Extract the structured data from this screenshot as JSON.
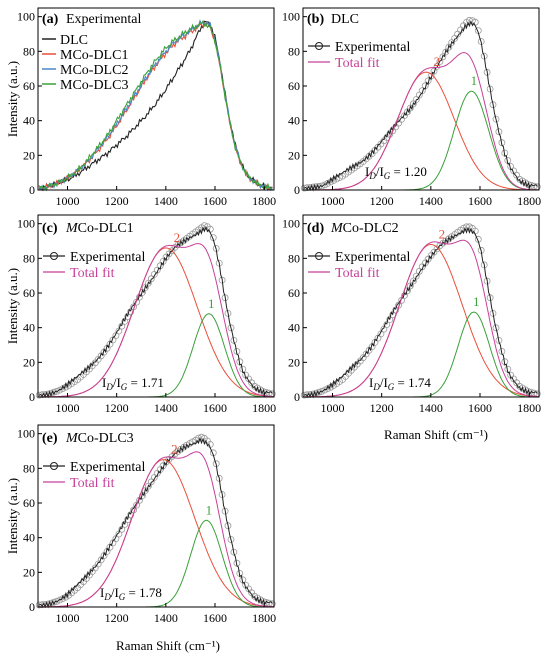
{
  "figure": {
    "ylabel": "Intensity (a.u.)",
    "xlabel": "Raman Shift (cm⁻¹)"
  },
  "colors": {
    "DLC": "#222222",
    "MCo-DLC1": "#e8503a",
    "MCo-DLC2": "#4a88c8",
    "MCo-DLC3": "#3aa03a",
    "experimental": "#222222",
    "total_fit": "#c8409a",
    "peak_D": "#e8503a",
    "peak_G": "#3aa03a",
    "marker": "#9a9a9a"
  },
  "chart_data": [
    {
      "panel": "a",
      "type": "line",
      "tag": "(a)",
      "title": "Experimental",
      "xlabel": "",
      "ylabel": "Intensity (a.u.)",
      "xlim": [
        880,
        1840
      ],
      "ylim": [
        0,
        105
      ],
      "xticks": [
        1000,
        1200,
        1400,
        1600,
        1800
      ],
      "yticks": [
        0,
        20,
        40,
        60,
        80,
        100
      ],
      "legend": "top-left",
      "series": [
        {
          "name": "DLC",
          "color_key": "DLC",
          "x": [
            890,
            920,
            960,
            1000,
            1040,
            1080,
            1120,
            1160,
            1200,
            1240,
            1280,
            1320,
            1360,
            1400,
            1440,
            1480,
            1500,
            1520,
            1540,
            1560,
            1580,
            1600,
            1620,
            1640,
            1660,
            1680,
            1700,
            1720,
            1740,
            1760,
            1780,
            1800,
            1830
          ],
          "y": [
            1,
            2,
            4,
            6,
            9,
            13,
            17,
            21,
            26,
            31,
            37,
            43,
            50,
            58,
            67,
            76,
            81,
            87,
            93,
            97,
            96,
            88,
            74,
            56,
            40,
            27,
            18,
            11,
            7,
            5,
            3,
            2,
            1
          ]
        },
        {
          "name": "MCo-DLC1",
          "color_key": "MCo-DLC1",
          "x": [
            890,
            920,
            960,
            1000,
            1040,
            1080,
            1120,
            1160,
            1200,
            1240,
            1280,
            1320,
            1360,
            1400,
            1440,
            1480,
            1500,
            1520,
            1540,
            1560,
            1580,
            1600,
            1620,
            1640,
            1660,
            1680,
            1700,
            1720,
            1740,
            1760,
            1780,
            1800,
            1830
          ],
          "y": [
            1,
            2,
            4,
            7,
            11,
            16,
            22,
            29,
            37,
            46,
            55,
            64,
            72,
            79,
            85,
            89,
            91,
            93,
            95,
            96,
            94,
            86,
            72,
            55,
            39,
            26,
            17,
            11,
            7,
            5,
            3,
            2,
            1
          ]
        },
        {
          "name": "MCo-DLC2",
          "color_key": "MCo-DLC2",
          "x": [
            890,
            920,
            960,
            1000,
            1040,
            1080,
            1120,
            1160,
            1200,
            1240,
            1280,
            1320,
            1360,
            1400,
            1440,
            1480,
            1500,
            1520,
            1540,
            1560,
            1580,
            1600,
            1620,
            1640,
            1660,
            1680,
            1700,
            1720,
            1740,
            1760,
            1780,
            1800,
            1830
          ],
          "y": [
            1,
            2,
            4,
            7,
            11,
            16,
            23,
            30,
            38,
            47,
            56,
            65,
            73,
            80,
            86,
            90,
            92,
            94,
            96,
            97,
            95,
            87,
            73,
            56,
            40,
            27,
            18,
            11,
            7,
            5,
            3,
            2,
            1
          ]
        },
        {
          "name": "MCo-DLC3",
          "color_key": "MCo-DLC3",
          "x": [
            890,
            920,
            960,
            1000,
            1040,
            1080,
            1120,
            1160,
            1200,
            1240,
            1280,
            1320,
            1360,
            1400,
            1440,
            1480,
            1500,
            1520,
            1540,
            1560,
            1580,
            1600,
            1620,
            1640,
            1660,
            1680,
            1700,
            1720,
            1740,
            1760,
            1780,
            1800,
            1830
          ],
          "y": [
            1,
            2,
            4,
            7,
            11,
            17,
            24,
            31,
            40,
            49,
            58,
            67,
            75,
            82,
            87,
            91,
            93,
            94,
            96,
            96,
            94,
            86,
            72,
            55,
            39,
            26,
            17,
            11,
            7,
            5,
            3,
            2,
            1
          ]
        }
      ]
    },
    {
      "panel": "b",
      "type": "line",
      "tag": "(b)",
      "title": "DLC",
      "xlabel": "",
      "ylabel": "",
      "xlim": [
        880,
        1840
      ],
      "ylim": [
        0,
        105
      ],
      "xticks": [
        1000,
        1200,
        1400,
        1600,
        1800
      ],
      "yticks": [
        0,
        20,
        40,
        60,
        80,
        100
      ],
      "legend": [
        "Experimental",
        "Total fit"
      ],
      "ratio_text": "= 1.20",
      "peaks": [
        {
          "label": "2",
          "center": 1380,
          "height": 68,
          "width": 270
        },
        {
          "label": "1",
          "center": 1565,
          "height": 57,
          "width": 165
        }
      ],
      "experimental": {
        "x": [
          880,
          920,
          960,
          1000,
          1040,
          1080,
          1120,
          1160,
          1200,
          1240,
          1280,
          1320,
          1360,
          1400,
          1440,
          1480,
          1520,
          1540,
          1560,
          1580,
          1600,
          1620,
          1640,
          1660,
          1680,
          1700,
          1720,
          1760,
          1800,
          1840
        ],
        "y": [
          1,
          2,
          3,
          6,
          9,
          13,
          17,
          22,
          28,
          34,
          41,
          48,
          56,
          65,
          74,
          83,
          91,
          95,
          97,
          96,
          88,
          74,
          58,
          43,
          31,
          21,
          14,
          6,
          3,
          2
        ]
      }
    },
    {
      "panel": "c",
      "type": "line",
      "tag": "(c)",
      "title": "MCo-DLC1",
      "xlabel": "",
      "ylabel": "Intensity (a.u.)",
      "xlim": [
        880,
        1840
      ],
      "ylim": [
        0,
        105
      ],
      "xticks": [
        1000,
        1200,
        1400,
        1600,
        1800
      ],
      "yticks": [
        0,
        20,
        40,
        60,
        80,
        100
      ],
      "legend": [
        "Experimental",
        "Total fit"
      ],
      "ratio_text": "= 1.71",
      "peaks": [
        {
          "label": "2",
          "center": 1400,
          "height": 86,
          "width": 300
        },
        {
          "label": "1",
          "center": 1575,
          "height": 48,
          "width": 150
        }
      ],
      "experimental": {
        "x": [
          880,
          920,
          960,
          1000,
          1040,
          1080,
          1120,
          1160,
          1200,
          1240,
          1280,
          1320,
          1360,
          1400,
          1440,
          1480,
          1520,
          1540,
          1560,
          1580,
          1600,
          1620,
          1640,
          1660,
          1680,
          1700,
          1720,
          1760,
          1800,
          1840
        ],
        "y": [
          1,
          2,
          4,
          7,
          11,
          16,
          22,
          29,
          37,
          46,
          55,
          64,
          72,
          80,
          86,
          90,
          94,
          96,
          98,
          96,
          88,
          74,
          57,
          42,
          30,
          20,
          13,
          6,
          3,
          2
        ]
      }
    },
    {
      "panel": "d",
      "type": "line",
      "tag": "(d)",
      "title": "MCo-DLC2",
      "xlabel": "Raman Shift (cm⁻¹)",
      "ylabel": "",
      "xlim": [
        880,
        1840
      ],
      "ylim": [
        0,
        105
      ],
      "xticks": [
        1000,
        1200,
        1400,
        1600,
        1800
      ],
      "yticks": [
        0,
        20,
        40,
        60,
        80,
        100
      ],
      "legend": [
        "Experimental",
        "Total fit"
      ],
      "ratio_text": "= 1.74",
      "peaks": [
        {
          "label": "2",
          "center": 1400,
          "height": 88,
          "width": 300
        },
        {
          "label": "1",
          "center": 1575,
          "height": 49,
          "width": 150
        }
      ],
      "experimental": {
        "x": [
          880,
          920,
          960,
          1000,
          1040,
          1080,
          1120,
          1160,
          1200,
          1240,
          1280,
          1320,
          1360,
          1400,
          1440,
          1480,
          1520,
          1540,
          1560,
          1580,
          1600,
          1620,
          1640,
          1660,
          1680,
          1700,
          1720,
          1760,
          1800,
          1840
        ],
        "y": [
          1,
          2,
          4,
          7,
          11,
          17,
          23,
          30,
          38,
          47,
          56,
          65,
          74,
          81,
          87,
          91,
          95,
          97,
          97,
          95,
          87,
          73,
          57,
          42,
          30,
          20,
          13,
          6,
          3,
          2
        ]
      }
    },
    {
      "panel": "e",
      "type": "line",
      "tag": "(e)",
      "title": "MCo-DLC3",
      "xlabel": "Raman Shift (cm⁻¹)",
      "ylabel": "Intensity (a.u.)",
      "xlim": [
        880,
        1840
      ],
      "ylim": [
        0,
        105
      ],
      "xticks": [
        1000,
        1200,
        1400,
        1600,
        1800
      ],
      "yticks": [
        0,
        20,
        40,
        60,
        80,
        100
      ],
      "legend": [
        "Experimental",
        "Total fit"
      ],
      "ratio_text": "= 1.78",
      "peaks": [
        {
          "label": "2",
          "center": 1390,
          "height": 85,
          "width": 300
        },
        {
          "label": "1",
          "center": 1565,
          "height": 50,
          "width": 150
        }
      ],
      "experimental": {
        "x": [
          880,
          920,
          960,
          1000,
          1040,
          1080,
          1120,
          1160,
          1200,
          1240,
          1280,
          1320,
          1360,
          1400,
          1440,
          1480,
          1520,
          1540,
          1560,
          1580,
          1600,
          1620,
          1640,
          1660,
          1680,
          1700,
          1720,
          1760,
          1800,
          1840
        ],
        "y": [
          1,
          2,
          4,
          7,
          12,
          18,
          25,
          33,
          41,
          50,
          59,
          68,
          76,
          83,
          88,
          92,
          95,
          97,
          96,
          93,
          85,
          71,
          55,
          41,
          29,
          19,
          13,
          6,
          3,
          2
        ]
      }
    }
  ]
}
